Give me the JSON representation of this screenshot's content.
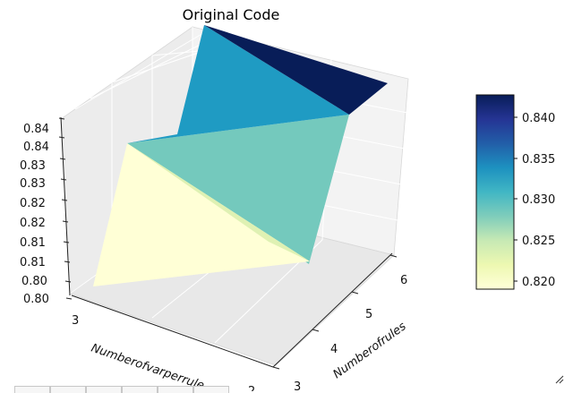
{
  "title": "Original Code",
  "chart_data": {
    "type": "surface3d",
    "title": "Original Code",
    "xlabel": "Numberofvarperrule",
    "ylabel": "Numberofrules",
    "zlabel": "",
    "x_ticks": [
      "3",
      "2"
    ],
    "y_ticks": [
      "3",
      "4",
      "5",
      "6"
    ],
    "z_ticks": [
      "0.80",
      "0.80",
      "0.81",
      "0.81",
      "0.82",
      "0.82",
      "0.83",
      "0.83",
      "0.84",
      "0.84"
    ],
    "xlim": [
      2,
      3
    ],
    "ylim": [
      3,
      6
    ],
    "zlim": [
      0.8,
      0.84
    ],
    "grid": true,
    "colormap": "YlGnBu",
    "surface": [
      {
        "x": 3,
        "y": 3,
        "z": 0.8
      },
      {
        "x": 3,
        "y": 6,
        "z": 0.833
      },
      {
        "x": 2,
        "y": 3,
        "z": 0.819
      },
      {
        "x": 2,
        "y": 6,
        "z": 0.837
      },
      {
        "x": 2,
        "y": 6.4,
        "z": 0.842
      }
    ],
    "colorbar": {
      "ticks": [
        "0.820",
        "0.825",
        "0.830",
        "0.835",
        "0.840"
      ],
      "vmin": 0.819,
      "vmax": 0.8425
    }
  },
  "toolbar": {
    "buttons": [
      "home",
      "back",
      "forward",
      "pan",
      "zoom",
      "save"
    ]
  }
}
